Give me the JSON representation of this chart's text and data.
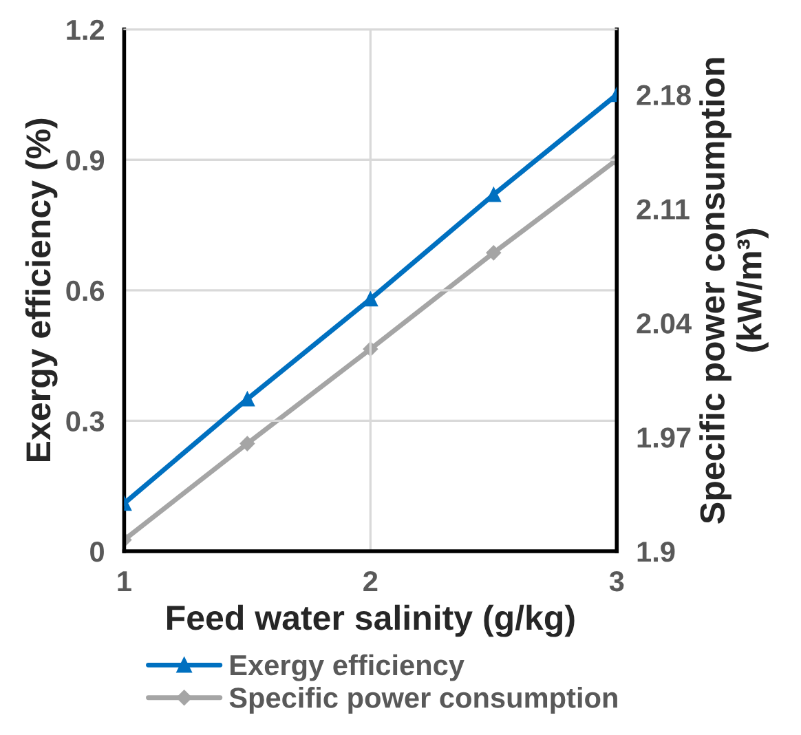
{
  "chart_data": {
    "type": "line",
    "xlabel": "Feed water salinity (g/kg)",
    "ylabel": "Exergy efficiency (%)",
    "y2label": "Specific power consumption (kW/m³)",
    "x": [
      1,
      1.5,
      2,
      2.5,
      3
    ],
    "series": [
      {
        "name": "Exergy efficiency",
        "color": "#0070c0",
        "marker": "triangle",
        "values": [
          0.11,
          0.35,
          0.58,
          0.82,
          1.05
        ]
      },
      {
        "name": "Specific power consumption",
        "color": "#a5a5a5",
        "marker": "diamond",
        "axis": "y2",
        "values": [
          1.907,
          1.966,
          2.024,
          2.083,
          2.14
        ]
      }
    ],
    "xlim": [
      1,
      3
    ],
    "xticks": [
      1,
      2,
      3
    ],
    "ylim": [
      0,
      1.2
    ],
    "yticks": [
      0,
      0.3,
      0.6,
      0.9,
      1.2
    ],
    "y2lim": [
      1.9,
      2.22
    ],
    "y2ticks": [
      1.9,
      1.97,
      2.04,
      2.11,
      2.18
    ],
    "grid": true,
    "legend": "bottom",
    "line_style": "solid"
  }
}
